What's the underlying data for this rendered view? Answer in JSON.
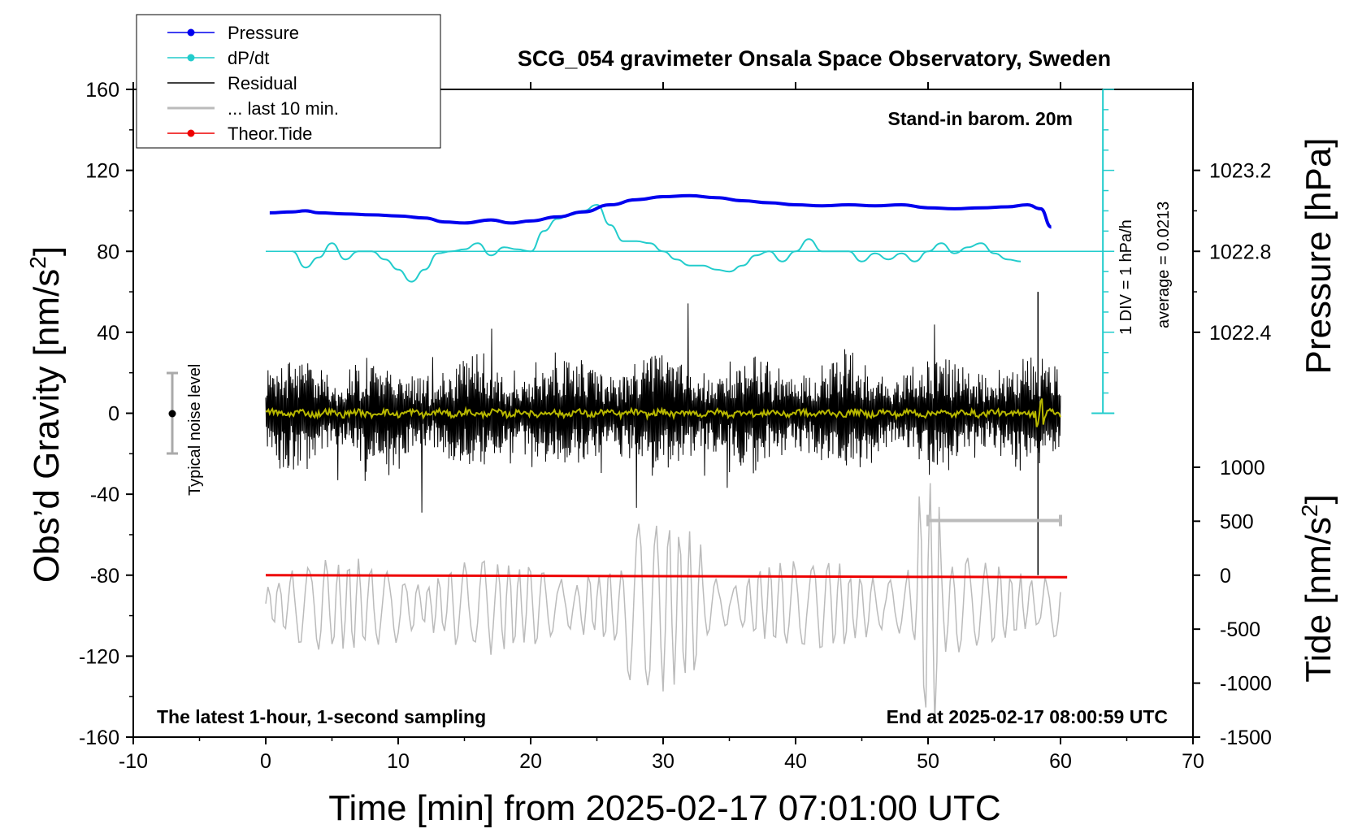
{
  "chart_data": {
    "type": "line",
    "title": "SCG_054 gravimeter Onsala Space Observatory, Sweden",
    "xlabel": "Time [min] from 2025-02-17 07:01:00 UTC",
    "xlim": [
      -10,
      70
    ],
    "xticks": [
      -10,
      0,
      10,
      20,
      30,
      40,
      50,
      60,
      70
    ],
    "left_axis": {
      "label_main": "Obs’d Gravity [nm/s",
      "label_sup": "2",
      "label_end": "]",
      "ylim": [
        -160,
        160
      ],
      "ticks": [
        160,
        120,
        80,
        40,
        0,
        -40,
        -80,
        -120,
        -160
      ]
    },
    "pressure_axis": {
      "label": "Pressure [hPa]",
      "ticks": [
        1023.2,
        1022.8,
        1022.4
      ],
      "tick_labels": [
        "1023.2",
        "1022.8",
        "1022.4"
      ],
      "maps_to_gravity": [
        120,
        80,
        40
      ]
    },
    "tide_axis": {
      "label_main": "Tide [nm/s",
      "label_sup": "2",
      "label_end": "]",
      "ticks": [
        1000,
        500,
        0,
        -500,
        -1000,
        -1500
      ],
      "maps_gravity_at_zero": -80,
      "gravity_per_1000": 53.33
    },
    "annotations": {
      "barometer": "Stand-in barom. 20m",
      "div_scale": "1 DIV = 1 hPa/h",
      "average": "average = 0.0213",
      "noise": "Typical noise level",
      "latest": "The latest 1-hour, 1-second sampling",
      "end_time": "End at 2025-02-17 08:00:59 UTC"
    },
    "legend": [
      {
        "name": "Pressure",
        "color": "#0000ee"
      },
      {
        "name": "dP/dt",
        "color": "#22cccc"
      },
      {
        "name": "Residual",
        "color": "#000000"
      },
      {
        "name": "... last 10 min.",
        "color": "#bbbbbb"
      },
      {
        "name": "Theor.Tide",
        "color": "#ee0000"
      }
    ],
    "series": [
      {
        "name": "Pressure",
        "color": "#0000ee",
        "unit": "nm/s2 (plotted)",
        "x": [
          0.3,
          2,
          3,
          4,
          6,
          8,
          10,
          12,
          13.5,
          15,
          17,
          18.5,
          20,
          22,
          24,
          26,
          28,
          30,
          32,
          34,
          36,
          38,
          40,
          42,
          44,
          46,
          48,
          50,
          52,
          54,
          56,
          57.5,
          58.5,
          59.3
        ],
        "y": [
          99,
          99.5,
          100,
          99,
          98.5,
          98,
          97.5,
          96.5,
          94.5,
          94,
          95.5,
          94,
          95,
          97,
          99.5,
          103,
          105.5,
          107,
          107.5,
          106.5,
          105,
          104,
          103,
          102.5,
          103,
          102.5,
          103,
          101.5,
          101,
          101.5,
          102,
          103,
          101,
          92
        ]
      },
      {
        "name": "dP/dt",
        "color": "#22cccc",
        "x": [
          2,
          3,
          4,
          5,
          6,
          7,
          8,
          9,
          10,
          11,
          12,
          13,
          14,
          15,
          16,
          17,
          18,
          19,
          20,
          21,
          22,
          23,
          24,
          25,
          26,
          27,
          28,
          29,
          30,
          31,
          32,
          33,
          34,
          35,
          36,
          37,
          38,
          39,
          40,
          41,
          42,
          43,
          44,
          45,
          46,
          47,
          48,
          49,
          50,
          51,
          52,
          53,
          54,
          55,
          56,
          57
        ],
        "y": [
          80,
          72,
          77,
          84,
          76,
          80,
          80,
          76,
          71,
          65,
          71,
          79,
          80,
          81,
          84,
          78,
          82,
          81,
          80,
          90,
          96,
          98,
          100,
          103,
          93,
          85,
          85,
          84,
          80,
          76,
          73,
          73,
          71,
          70,
          73,
          78,
          80,
          75,
          80,
          86,
          80,
          80,
          80,
          75,
          79,
          76,
          79,
          75,
          80,
          84,
          79,
          82,
          84,
          79,
          76,
          75
        ]
      },
      {
        "name": "Residual",
        "color": "#000000",
        "x_range": [
          0,
          60
        ],
        "amplitude_typical": 30,
        "amplitude_max": 60
      },
      {
        "name": "... last 10 min.",
        "color": "#bbbbbb",
        "x_range": [
          0,
          60
        ],
        "mean": -95,
        "amplitude_typical": 20
      },
      {
        "name": "Theor.Tide",
        "color": "#ee0000",
        "x": [
          0,
          60.5
        ],
        "y": [
          -80,
          -81
        ]
      }
    ]
  }
}
